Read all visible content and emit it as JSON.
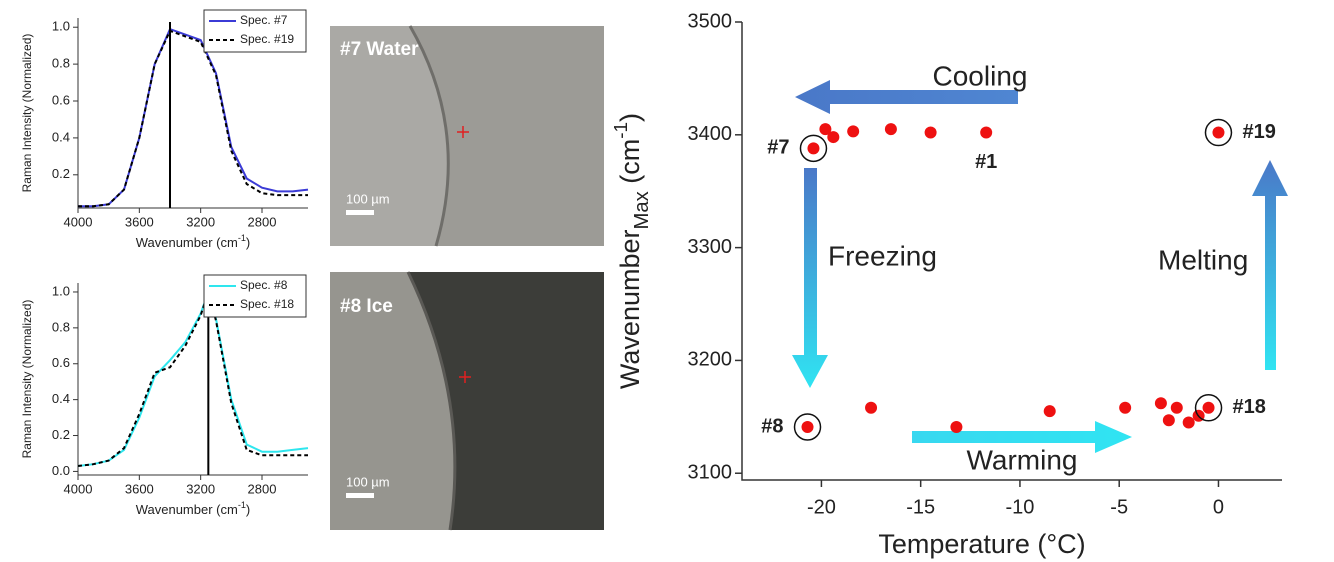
{
  "chart_data": [
    {
      "type": "line",
      "x": [
        4000,
        3900,
        3800,
        3700,
        3600,
        3500,
        3400,
        3300,
        3200,
        3100,
        3000,
        2900,
        2800,
        2700,
        2600,
        2500
      ],
      "series": [
        {
          "name": "Spec. #7",
          "color": "#3b3bd6",
          "dash": false,
          "values": [
            0.03,
            0.03,
            0.04,
            0.12,
            0.4,
            0.8,
            0.99,
            0.96,
            0.93,
            0.75,
            0.35,
            0.18,
            0.13,
            0.11,
            0.11,
            0.12
          ]
        },
        {
          "name": "Spec. #19",
          "color": "#000000",
          "dash": true,
          "values": [
            0.03,
            0.03,
            0.04,
            0.12,
            0.4,
            0.8,
            0.98,
            0.95,
            0.92,
            0.74,
            0.33,
            0.15,
            0.1,
            0.09,
            0.09,
            0.09
          ]
        }
      ],
      "xlim": [
        4000,
        2500
      ],
      "ylim": [
        0.02,
        1.05
      ],
      "xticks": [
        4000,
        3600,
        3200,
        2800
      ],
      "yticks": [
        0.2,
        0.4,
        0.6,
        0.8,
        {
          "value": 1,
          "label": "1.0"
        }
      ],
      "x_label": [
        "Wavenumber (cm",
        "-1",
        ")"
      ],
      "y_label": "Raman Intensity (Normalized)",
      "vline": 3400,
      "legend": "top-right"
    },
    {
      "type": "line",
      "x": [
        4000,
        3900,
        3800,
        3700,
        3600,
        3500,
        3400,
        3300,
        3200,
        3150,
        3100,
        3000,
        2900,
        2800,
        2700,
        2600,
        2500
      ],
      "series": [
        {
          "name": "Spec. #8",
          "color": "#2ee6ee",
          "dash": false,
          "values": [
            0.03,
            0.04,
            0.06,
            0.12,
            0.3,
            0.53,
            0.62,
            0.72,
            0.88,
            1.0,
            0.85,
            0.4,
            0.15,
            0.11,
            0.11,
            0.12,
            0.13
          ]
        },
        {
          "name": "Spec. #18",
          "color": "#000000",
          "dash": true,
          "values": [
            0.03,
            0.04,
            0.06,
            0.13,
            0.32,
            0.55,
            0.58,
            0.7,
            0.87,
            1.0,
            0.84,
            0.38,
            0.12,
            0.09,
            0.09,
            0.09,
            0.09
          ]
        }
      ],
      "xlim": [
        4000,
        2500
      ],
      "ylim": [
        -0.02,
        1.05
      ],
      "xticks": [
        4000,
        3600,
        3200,
        2800
      ],
      "yticks": [
        {
          "value": 0,
          "label": "0.0"
        },
        0.2,
        0.4,
        0.6,
        0.8,
        {
          "value": 1,
          "label": "1.0"
        }
      ],
      "x_label": [
        "Wavenumber (cm",
        "-1",
        ")"
      ],
      "y_label": "Raman Intensity (Normalized)",
      "vline": 3150,
      "legend": "top-right"
    },
    {
      "type": "scatter",
      "color": "#ee1111",
      "x": [
        -11.7,
        -14.5,
        -16.5,
        -18.4,
        -19.4,
        -19.8,
        -20.4,
        -20.7,
        -17.5,
        -13.2,
        -8.5,
        -4.7,
        -2.9,
        -2.5,
        -2.1,
        -1.5,
        -1.0,
        -0.5,
        0
      ],
      "values": [
        3402,
        3402,
        3405,
        3403,
        3398,
        3405,
        3388,
        3141,
        3158,
        3141,
        3155,
        3158,
        3162,
        3147,
        3158,
        3145,
        3151,
        3158,
        3402
      ],
      "labels": [
        "#1",
        null,
        null,
        null,
        null,
        null,
        "#7",
        "#8",
        null,
        null,
        null,
        null,
        null,
        null,
        null,
        null,
        null,
        "#18",
        "#19"
      ],
      "circled": [
        6,
        7,
        17,
        18
      ],
      "xlim": [
        -24,
        3.2
      ],
      "ylim": [
        3094,
        3500
      ],
      "xticks": [
        -20,
        -15,
        -10,
        -5,
        0
      ],
      "yticks": [
        3100,
        3200,
        3300,
        3400,
        3500
      ],
      "x_label": "Temperature (°C)",
      "y_label": [
        "Wavenumber",
        "Max",
        " (cm",
        "-1",
        ")"
      ]
    }
  ],
  "annotations": [
    "Cooling",
    "Freezing",
    "Melting",
    "Warming"
  ],
  "micrographs": [
    {
      "label": "#7 Water",
      "scale": "100 µm"
    },
    {
      "label": "#8 Ice",
      "scale": "100 µm"
    }
  ]
}
